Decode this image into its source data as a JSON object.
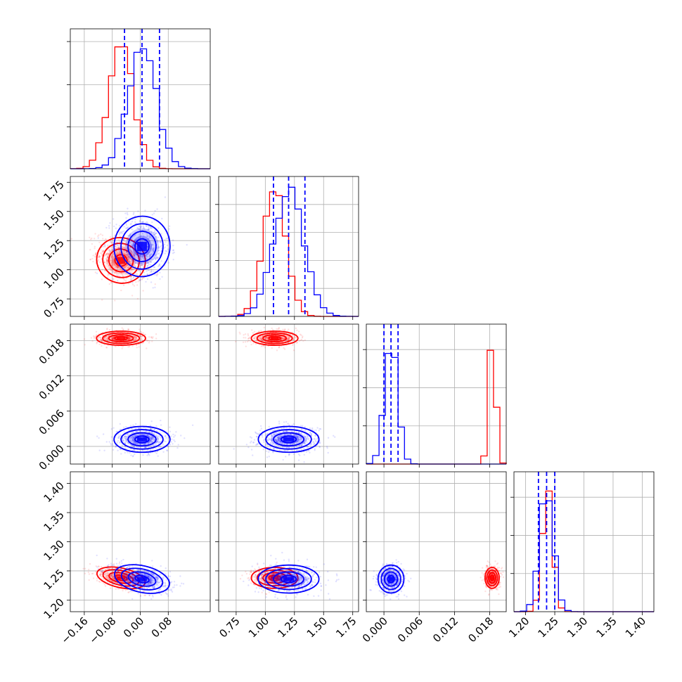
{
  "chart_data": {
    "type": "corner",
    "description_free": true,
    "grid": true,
    "series": [
      {
        "key": "red",
        "color": "#ff0000"
      },
      {
        "key": "blue",
        "color": "#0000ff"
      }
    ],
    "parameters": [
      {
        "range": [
          -0.2,
          0.2
        ],
        "ticks": [
          -0.16,
          -0.08,
          0.0,
          0.08
        ],
        "tick_labels": [
          "−0.16",
          "−0.08",
          "0.00",
          "0.08"
        ],
        "dist": {
          "red": {
            "mean": -0.055,
            "sd": 0.035
          },
          "blue": {
            "mean": 0.005,
            "sd": 0.04
          }
        },
        "hist_ylim": [
          0,
          1.1
        ],
        "hist_gridlines": [
          0.33,
          0.66,
          1.0
        ],
        "quantiles_blue": [
          -0.045,
          0.005,
          0.055
        ]
      },
      {
        "range": [
          0.6,
          1.8
        ],
        "ticks": [
          0.75,
          1.0,
          1.25,
          1.5,
          1.75
        ],
        "tick_labels": [
          "0.75",
          "1.00",
          "1.25",
          "1.50",
          "1.75"
        ],
        "dist": {
          "red": {
            "mean": 1.08,
            "sd": 0.1
          },
          "blue": {
            "mean": 1.2,
            "sd": 0.13
          }
        },
        "hist_ylim": [
          0,
          1.1
        ],
        "hist_gridlines": [
          0.22,
          0.44,
          0.66,
          0.88
        ],
        "quantiles_blue": [
          1.07,
          1.2,
          1.34
        ]
      },
      {
        "range": [
          -0.003,
          0.0208
        ],
        "ticks": [
          0.0,
          0.006,
          0.012,
          0.018
        ],
        "tick_labels": [
          "0.000",
          "0.006",
          "0.012",
          "0.018"
        ],
        "dist": {
          "red": {
            "mean": 0.0184,
            "sd": 0.0006
          },
          "blue": {
            "mean": 0.0012,
            "sd": 0.0011
          }
        },
        "hist_ylim": [
          0,
          1.1
        ],
        "hist_gridlines": [
          0.3,
          0.6,
          0.9
        ],
        "quantiles_blue": [
          0.0,
          0.0012,
          0.0024
        ]
      },
      {
        "range": [
          1.18,
          1.42
        ],
        "ticks": [
          1.2,
          1.25,
          1.3,
          1.35,
          1.4
        ],
        "tick_labels": [
          "1.20",
          "1.25",
          "1.30",
          "1.35",
          "1.40"
        ],
        "dist": {
          "red": {
            "mean": 1.238,
            "sd": 0.009
          },
          "blue": {
            "mean": 1.236,
            "sd": 0.012
          }
        },
        "hist_ylim": [
          0,
          1.1
        ],
        "hist_gridlines": [
          0.3,
          0.6,
          0.9
        ],
        "quantiles_blue": [
          1.222,
          1.236,
          1.25
        ]
      }
    ],
    "correlations": {
      "red": {
        "1-0": -0.35,
        "3-0": -0.5,
        "3-1": 0.0,
        "2-0": 0.0,
        "2-1": 0.0,
        "3-2": 0.0
      },
      "blue": {
        "1-0": -0.1,
        "3-0": -0.45,
        "3-1": 0.0,
        "2-0": 0.0,
        "2-1": 0.0,
        "3-2": 0.0
      }
    },
    "contour_levels_sigma": [
      0.5,
      1.0,
      1.5,
      2.0
    ]
  }
}
